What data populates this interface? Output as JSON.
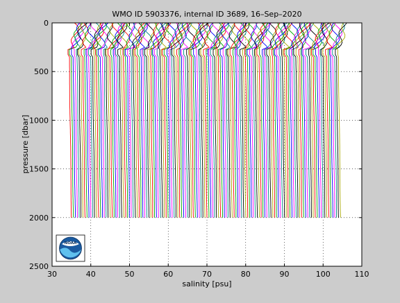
{
  "chart_data": {
    "type": "line",
    "title": "WMO ID 5903376, internal ID 3689, 16–Sep–2020",
    "xlabel": "salinity [psu]",
    "ylabel": "pressure [dbar]",
    "xlim": [
      30,
      110
    ],
    "ylim": [
      0,
      2500
    ],
    "y_reversed": true,
    "grid": "dotted",
    "x_ticks": [
      30,
      40,
      50,
      60,
      70,
      80,
      90,
      100,
      110
    ],
    "y_ticks": [
      0,
      500,
      1000,
      1500,
      2000,
      2500
    ],
    "profile_description": "Waterfall of successive salinity profiles, each offset by a constant amount along the salinity axis",
    "profile_count": 140,
    "first_profile_offset": 35.0,
    "profile_offset_step": 0.5,
    "profile_max_pressure": 2000,
    "colors": [
      "#ff0000",
      "#00aa00",
      "#0000ff",
      "#ff00ff",
      "#008888",
      "#000000",
      "#aaaa00"
    ],
    "background_color": "#cccccc",
    "plot_background": "#ffffff",
    "logo": {
      "icon": "noaa-logo-icon",
      "text": "NOAA"
    }
  }
}
